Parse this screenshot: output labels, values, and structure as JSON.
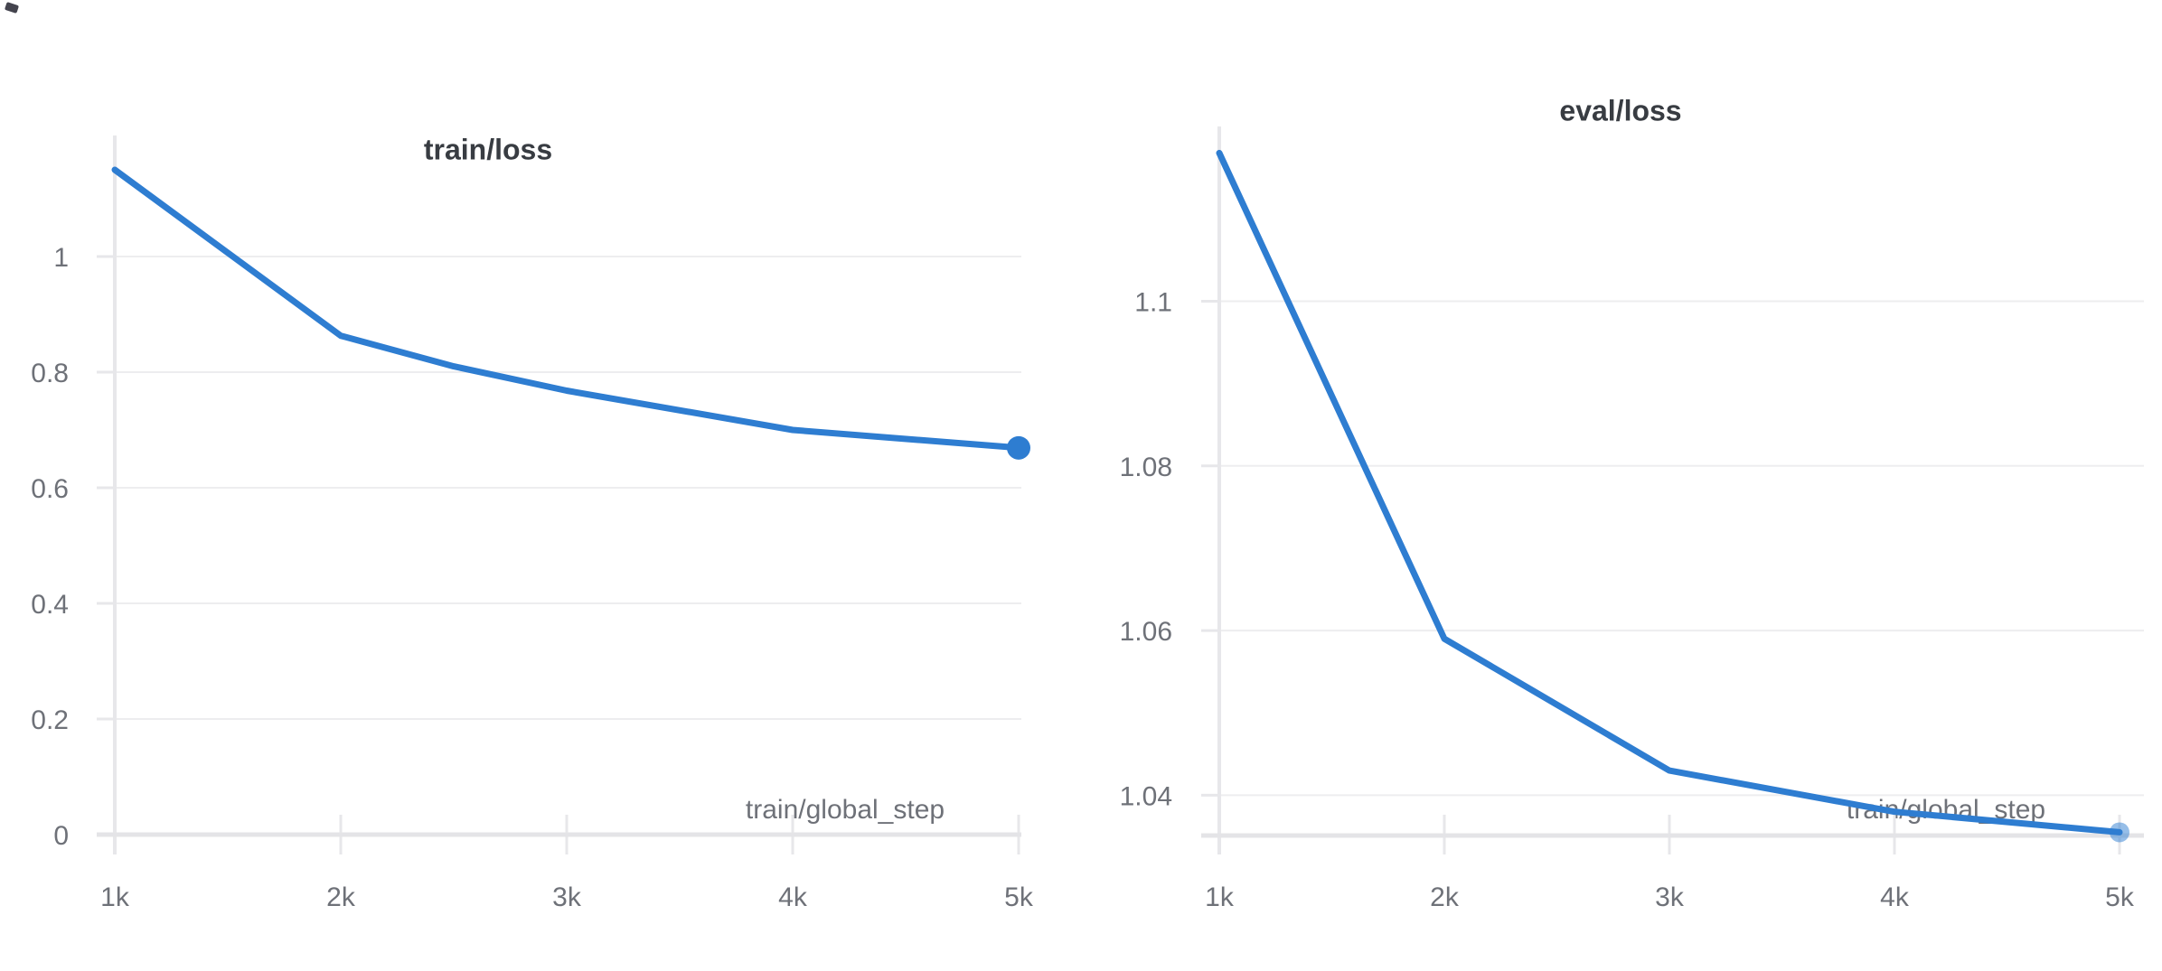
{
  "chart_data": [
    {
      "type": "line",
      "title": "train/loss",
      "xlabel": "train/global_step",
      "series": [
        {
          "name": "train/loss",
          "x": [
            1000,
            2000,
            2500,
            3000,
            4000,
            5000
          ],
          "y": [
            1.15,
            0.863,
            0.81,
            0.768,
            0.7,
            0.669
          ]
        }
      ],
      "x_ticks": {
        "values": [
          1000,
          2000,
          3000,
          4000,
          5000
        ],
        "labels": [
          "1k",
          "2k",
          "3k",
          "4k",
          "5k"
        ]
      },
      "y_ticks": {
        "values": [
          0,
          0.2,
          0.4,
          0.6,
          0.8,
          1
        ],
        "labels": [
          "0",
          "0.2",
          "0.4",
          "0.6",
          "0.8",
          "1"
        ]
      },
      "xlim": [
        1000,
        5000
      ],
      "ylim": [
        0,
        1.2094
      ],
      "grid": "horizontal",
      "legend": "none",
      "line_color": "#2e7dd1",
      "end_marker": "solid-dot"
    },
    {
      "type": "line",
      "title": "eval/loss",
      "xlabel": "train/global_step",
      "series": [
        {
          "name": "eval/loss",
          "x": [
            1000,
            2000,
            3000,
            4000,
            5000
          ],
          "y": [
            1.118,
            1.059,
            1.043,
            1.038,
            1.0355
          ]
        }
      ],
      "x_ticks": {
        "values": [
          1000,
          2000,
          3000,
          4000,
          5000
        ],
        "labels": [
          "1k",
          "2k",
          "3k",
          "4k",
          "5k"
        ]
      },
      "y_ticks": {
        "values": [
          1.1,
          1.08,
          1.06,
          1.04
        ],
        "labels": [
          "1.1",
          "1.08",
          "1.06",
          "1.04"
        ]
      },
      "xlim": [
        1000,
        5000
      ],
      "ylim": [
        1.03511,
        1.12122
      ],
      "grid": "horizontal",
      "legend": "none",
      "line_color": "#2e7dd1",
      "end_marker": "faded-dot"
    }
  ],
  "styles": {
    "accent_blue": "#2e7dd1",
    "grid_color": "#ededef",
    "axis_color": "#e7e7ea",
    "axis_strong_color": "#e4e4e7",
    "tick_label_color": "#6e7178",
    "title_color": "#383c42"
  }
}
